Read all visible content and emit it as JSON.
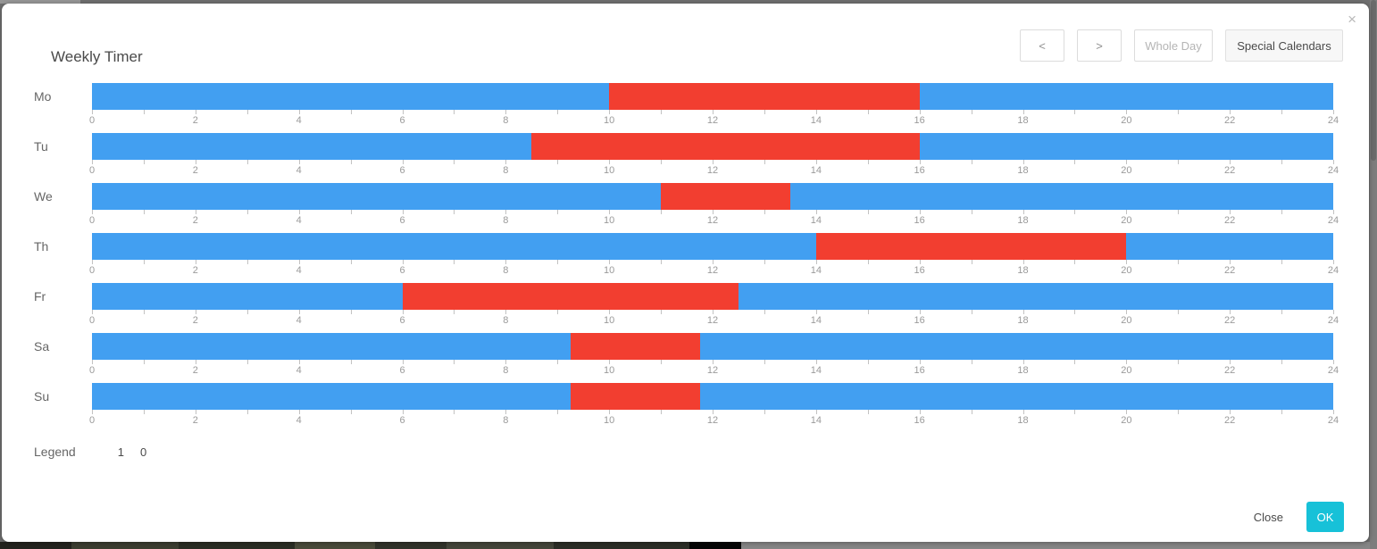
{
  "window": {
    "title": "Weekly Timer",
    "close_icon": "×"
  },
  "toolbar": {
    "prev": "<",
    "next": ">",
    "whole_day": "Whole Day",
    "special_calendars": "Special Calendars"
  },
  "chart_data": {
    "type": "bar",
    "subtype": "weekly-timeline",
    "title": "Weekly Timer",
    "orientation": "horizontal",
    "categories": [
      "Mo",
      "Tu",
      "We",
      "Th",
      "Fr",
      "Sa",
      "Su"
    ],
    "x_axis": {
      "min": 0,
      "max": 24,
      "tick_interval": 1,
      "label_interval": 2,
      "labels": [
        "0",
        "2",
        "4",
        "6",
        "8",
        "10",
        "12",
        "14",
        "16",
        "18",
        "20",
        "22",
        "24"
      ]
    },
    "palette": {
      "blue": "#429ff1",
      "red": "#f23e30"
    },
    "rows": [
      {
        "day": "Mo",
        "segments": [
          {
            "color": "blue",
            "start": 0,
            "end": 10
          },
          {
            "color": "red",
            "start": 10,
            "end": 16
          },
          {
            "color": "blue",
            "start": 16,
            "end": 24
          }
        ]
      },
      {
        "day": "Tu",
        "segments": [
          {
            "color": "blue",
            "start": 0,
            "end": 8.5
          },
          {
            "color": "red",
            "start": 8.5,
            "end": 16
          },
          {
            "color": "blue",
            "start": 16,
            "end": 24
          }
        ]
      },
      {
        "day": "We",
        "segments": [
          {
            "color": "blue",
            "start": 0,
            "end": 11
          },
          {
            "color": "red",
            "start": 11,
            "end": 13.5
          },
          {
            "color": "blue",
            "start": 13.5,
            "end": 24
          }
        ]
      },
      {
        "day": "Th",
        "segments": [
          {
            "color": "blue",
            "start": 0,
            "end": 14
          },
          {
            "color": "red",
            "start": 14,
            "end": 20
          },
          {
            "color": "blue",
            "start": 20,
            "end": 24
          }
        ]
      },
      {
        "day": "Fr",
        "segments": [
          {
            "color": "blue",
            "start": 0,
            "end": 6
          },
          {
            "color": "red",
            "start": 6,
            "end": 12.5
          },
          {
            "color": "blue",
            "start": 12.5,
            "end": 24
          }
        ]
      },
      {
        "day": "Sa",
        "segments": [
          {
            "color": "blue",
            "start": 0,
            "end": 9.25
          },
          {
            "color": "red",
            "start": 9.25,
            "end": 11.75
          },
          {
            "color": "blue",
            "start": 11.75,
            "end": 24
          }
        ]
      },
      {
        "day": "Su",
        "segments": [
          {
            "color": "blue",
            "start": 0,
            "end": 9.25
          },
          {
            "color": "red",
            "start": 9.25,
            "end": 11.75
          },
          {
            "color": "blue",
            "start": 11.75,
            "end": 24
          }
        ]
      }
    ]
  },
  "legend": {
    "label": "Legend",
    "items": [
      "1",
      "0"
    ]
  },
  "footer": {
    "close": "Close",
    "ok": "OK",
    "ok_color": "#17c1d8"
  }
}
